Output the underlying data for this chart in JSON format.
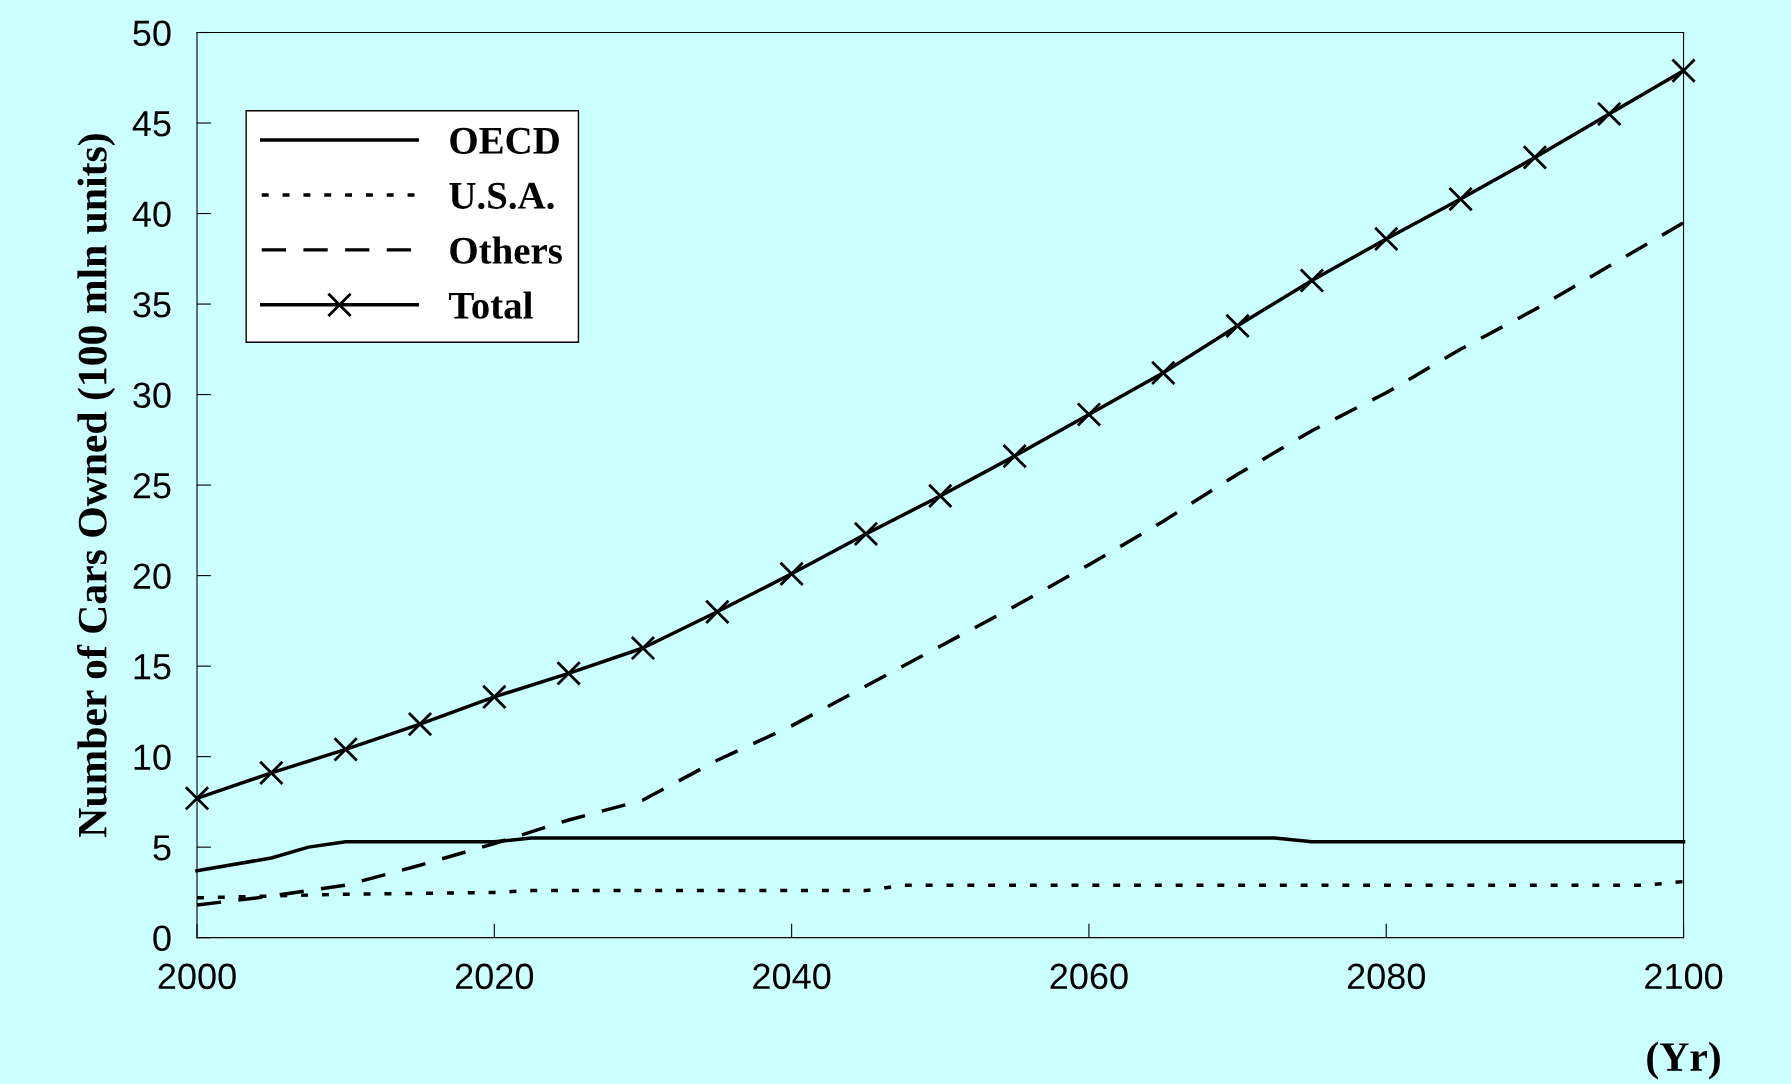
{
  "chart_data": {
    "type": "line",
    "xlabel": "(Yr)",
    "ylabel": "Number of Cars Owned (100 mln units)",
    "xlim": [
      2000,
      2100
    ],
    "xticks": [
      2000,
      2020,
      2040,
      2060,
      2080,
      2100
    ],
    "ylim": [
      0,
      50
    ],
    "yticks": [
      0,
      5,
      10,
      15,
      20,
      25,
      30,
      35,
      40,
      45,
      50
    ],
    "grid": false,
    "legend": "top left",
    "series": [
      {
        "name": "OECD",
        "color": "#000000",
        "line_style": "solid",
        "marker": "none",
        "x": [
          2000,
          2005,
          2007.5,
          2010,
          2020,
          2022.5,
          2072.5,
          2075,
          2100
        ],
        "values": [
          3.7,
          4.4,
          5.0,
          5.3,
          5.3,
          5.5,
          5.5,
          5.3,
          5.3
        ]
      },
      {
        "name": "U.S.A.",
        "color": "#000000",
        "line_style": "dotted",
        "marker": "none",
        "x": [
          2000,
          2010,
          2020,
          2022.5,
          2045,
          2047.5,
          2097.5,
          2100
        ],
        "values": [
          2.2,
          2.4,
          2.5,
          2.6,
          2.6,
          2.9,
          2.9,
          3.1
        ]
      },
      {
        "name": "Others",
        "color": "#000000",
        "line_style": "dashed",
        "marker": "none",
        "x": [
          2000,
          2005,
          2010,
          2015,
          2020,
          2025,
          2030,
          2035,
          2040,
          2045,
          2050,
          2055,
          2060,
          2065,
          2070,
          2075,
          2080,
          2085,
          2090,
          2095,
          2100
        ],
        "values": [
          1.8,
          2.3,
          2.9,
          4.0,
          5.2,
          6.5,
          7.6,
          9.8,
          11.7,
          13.9,
          16.1,
          18.3,
          20.6,
          23.0,
          25.6,
          28.0,
          30.1,
          32.5,
          34.7,
          37.1,
          39.5
        ]
      },
      {
        "name": "Total",
        "color": "#000000",
        "line_style": "solid",
        "marker": "cross",
        "x": [
          2000,
          2005,
          2010,
          2015,
          2020,
          2025,
          2030,
          2035,
          2040,
          2045,
          2050,
          2055,
          2060,
          2065,
          2070,
          2075,
          2080,
          2085,
          2090,
          2095,
          2100
        ],
        "values": [
          7.7,
          9.1,
          10.4,
          11.8,
          13.3,
          14.6,
          16.0,
          18.0,
          20.1,
          22.3,
          24.4,
          26.6,
          28.9,
          31.2,
          33.8,
          36.3,
          38.6,
          40.8,
          43.1,
          45.5,
          47.9
        ]
      }
    ]
  }
}
